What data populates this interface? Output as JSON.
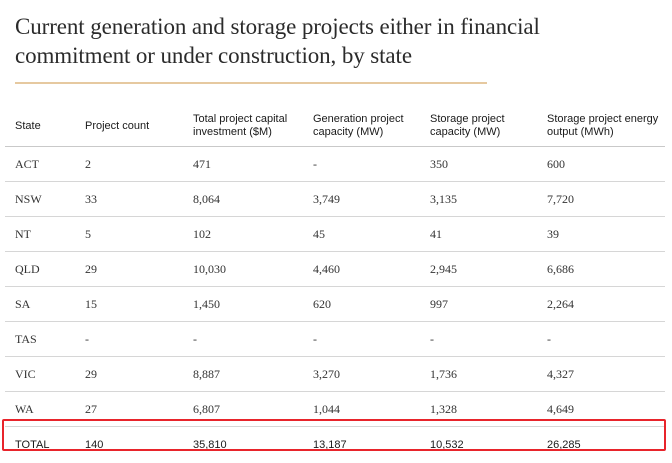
{
  "title": "Current generation and storage projects either in financial commitment or under construction, by state",
  "table": {
    "headers": [
      "State",
      "Project count",
      "Total project capital investment ($M)",
      "Generation project capacity (MW)",
      "Storage project capacity (MW)",
      "Storage project energy output (MWh)"
    ],
    "rows": [
      [
        "ACT",
        "2",
        "471",
        "-",
        "350",
        "600"
      ],
      [
        "NSW",
        "33",
        "8,064",
        "3,749",
        "3,135",
        "7,720"
      ],
      [
        "NT",
        "5",
        "102",
        "45",
        "41",
        "39"
      ],
      [
        "QLD",
        "29",
        "10,030",
        "4,460",
        "2,945",
        "6,686"
      ],
      [
        "SA",
        "15",
        "1,450",
        "620",
        "997",
        "2,264"
      ],
      [
        "TAS",
        "-",
        "-",
        "-",
        "-",
        "-"
      ],
      [
        "VIC",
        "29",
        "8,887",
        "3,270",
        "1,736",
        "4,327"
      ],
      [
        "WA",
        "27",
        "6,807",
        "1,044",
        "1,328",
        "4,649"
      ]
    ],
    "total": [
      "TOTAL",
      "140",
      "35,810",
      "13,187",
      "10,532",
      "26,285"
    ]
  },
  "colors": {
    "title_rule": "#e6c9a0",
    "highlight_border": "#e8242b",
    "row_divider": "#d6d6d6"
  }
}
